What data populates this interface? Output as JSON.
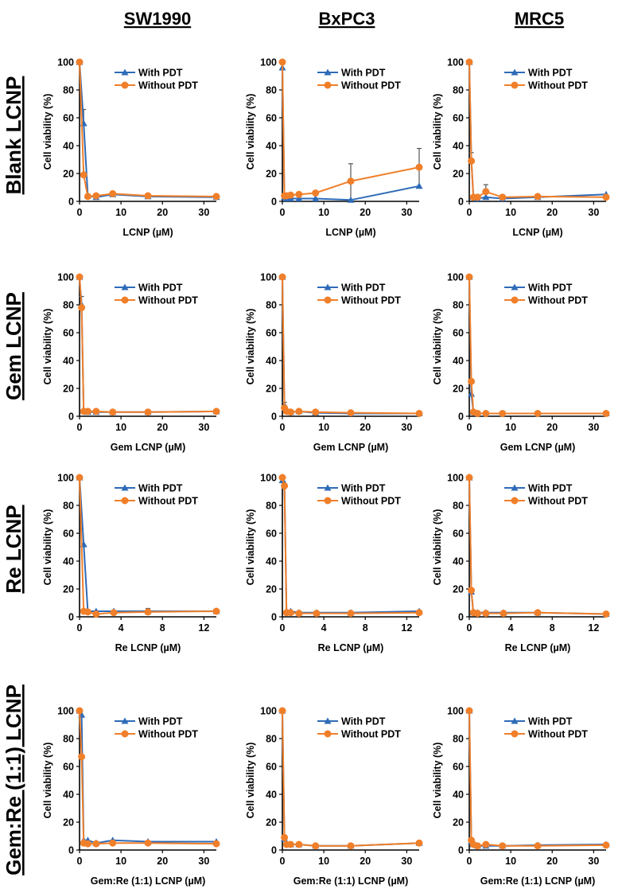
{
  "column_titles": [
    "SW1990",
    "BxPC3",
    "MRC5"
  ],
  "row_titles": [
    "Blank LCNP",
    "Gem LCNP",
    "Re LCNP",
    "Gem:Re (1:1) LCNP"
  ],
  "colors": {
    "with_pdt": "#2e6bb8",
    "without_pdt": "#f07f2a",
    "error_bar": "#555555",
    "axis": "#000000"
  },
  "chart_data": [
    {
      "type": "line",
      "row": "Blank LCNP",
      "cell_line": "SW1990",
      "xlabel": "LCNP (µM)",
      "ylabel": "Cell viability (%)",
      "xlim": [
        0,
        33
      ],
      "ylim": [
        0,
        100
      ],
      "xticks": [
        0,
        10,
        20,
        30
      ],
      "yticks": [
        0,
        20,
        40,
        60,
        80,
        100
      ],
      "legend": "top-right",
      "series": [
        {
          "name": "With PDT",
          "marker": "triangle",
          "x": [
            0,
            1,
            2,
            4,
            8,
            16.5,
            33
          ],
          "y": [
            100,
            56,
            4,
            3,
            5,
            3.5,
            3
          ],
          "err": [
            0,
            10,
            1,
            1,
            1,
            1,
            1
          ]
        },
        {
          "name": "Without PDT",
          "marker": "circle",
          "x": [
            0,
            1,
            2,
            4,
            8,
            16.5,
            33
          ],
          "y": [
            100,
            19,
            3.5,
            4,
            5.5,
            4,
            3.5
          ],
          "err": [
            0,
            0,
            0,
            0,
            0,
            0,
            0
          ]
        }
      ]
    },
    {
      "type": "line",
      "row": "Blank LCNP",
      "cell_line": "BxPC3",
      "xlabel": "LCNP (µM)",
      "ylabel": "Cell viability (%)",
      "xlim": [
        0,
        33
      ],
      "ylim": [
        0,
        100
      ],
      "xticks": [
        0,
        10,
        20,
        30
      ],
      "yticks": [
        0,
        20,
        40,
        60,
        80,
        100
      ],
      "legend": "top-right",
      "series": [
        {
          "name": "With PDT",
          "marker": "triangle",
          "x": [
            0,
            0.5,
            1,
            2,
            4,
            8,
            16.5,
            33
          ],
          "y": [
            96,
            3,
            2,
            2,
            2,
            2,
            1,
            11
          ],
          "err": [
            0,
            0,
            0,
            0,
            0,
            0,
            26,
            27
          ]
        },
        {
          "name": "Without PDT",
          "marker": "circle",
          "x": [
            0,
            0.5,
            1,
            2,
            4,
            8,
            16.5,
            33
          ],
          "y": [
            100,
            4,
            4,
            4.5,
            5,
            6,
            14.5,
            24.5
          ],
          "err": [
            0,
            0,
            0,
            0,
            0,
            0,
            0,
            0
          ]
        }
      ]
    },
    {
      "type": "line",
      "row": "Blank LCNP",
      "cell_line": "MRC5",
      "xlabel": "LCNP (µM)",
      "ylabel": "Cell viability (%)",
      "xlim": [
        0,
        33
      ],
      "ylim": [
        0,
        100
      ],
      "xticks": [
        0,
        10,
        20,
        30
      ],
      "yticks": [
        0,
        20,
        40,
        60,
        80,
        100
      ],
      "legend": "top-right",
      "series": [
        {
          "name": "With PDT",
          "marker": "triangle",
          "x": [
            0,
            0.5,
            1,
            2,
            4,
            8,
            16.5,
            33
          ],
          "y": [
            100,
            30,
            3,
            2,
            3,
            2,
            3,
            5
          ],
          "err": [
            0,
            5,
            0,
            0,
            0,
            0,
            0,
            0
          ]
        },
        {
          "name": "Without PDT",
          "marker": "circle",
          "x": [
            0,
            0.5,
            1,
            2,
            4,
            8,
            16.5,
            33
          ],
          "y": [
            100,
            29,
            3,
            3,
            7,
            3,
            3.5,
            3
          ],
          "err": [
            0,
            0,
            0,
            0,
            5,
            0,
            0,
            0
          ]
        }
      ]
    },
    {
      "type": "line",
      "row": "Gem LCNP",
      "cell_line": "SW1990",
      "xlabel": "Gem LCNP (µM)",
      "ylabel": "Cell viability (%)",
      "xlim": [
        0,
        33
      ],
      "ylim": [
        0,
        100
      ],
      "xticks": [
        0,
        10,
        20,
        30
      ],
      "yticks": [
        0,
        20,
        40,
        60,
        80,
        100
      ],
      "legend": "top-right",
      "series": [
        {
          "name": "With PDT",
          "marker": "triangle",
          "x": [
            0,
            0.5,
            1,
            2,
            4,
            8,
            16.5,
            33
          ],
          "y": [
            100,
            80,
            4,
            3,
            3,
            3,
            3,
            3.5
          ],
          "err": [
            0,
            6,
            0,
            0,
            0,
            0,
            0,
            0
          ]
        },
        {
          "name": "Without PDT",
          "marker": "circle",
          "x": [
            0,
            0.5,
            1,
            2,
            4,
            8,
            16.5,
            33
          ],
          "y": [
            100,
            78,
            3.5,
            3.5,
            3.5,
            3,
            3,
            3.5
          ],
          "err": [
            0,
            0,
            0,
            0,
            0,
            0,
            0,
            0
          ]
        }
      ]
    },
    {
      "type": "line",
      "row": "Gem LCNP",
      "cell_line": "BxPC3",
      "xlabel": "Gem LCNP (µM)",
      "ylabel": "Cell viability (%)",
      "xlim": [
        0,
        33
      ],
      "ylim": [
        0,
        100
      ],
      "xticks": [
        0,
        10,
        20,
        30
      ],
      "yticks": [
        0,
        20,
        40,
        60,
        80,
        100
      ],
      "legend": "top-right",
      "series": [
        {
          "name": "With PDT",
          "marker": "triangle",
          "x": [
            0,
            0.5,
            1,
            2,
            4,
            8,
            16.5,
            33
          ],
          "y": [
            100,
            8,
            4,
            3,
            3.5,
            2.5,
            2,
            2
          ],
          "err": [
            0,
            2,
            0,
            0,
            0,
            0,
            0,
            0
          ]
        },
        {
          "name": "Without PDT",
          "marker": "circle",
          "x": [
            0,
            0.5,
            1,
            2,
            4,
            8,
            16.5,
            33
          ],
          "y": [
            100,
            6,
            3.5,
            3,
            3.5,
            3,
            2.5,
            2
          ],
          "err": [
            0,
            0,
            0,
            0,
            0,
            0,
            0,
            0
          ]
        }
      ]
    },
    {
      "type": "line",
      "row": "Gem LCNP",
      "cell_line": "MRC5",
      "xlabel": "Gem LCNP (µM)",
      "ylabel": "Cell viability (%)",
      "xlim": [
        0,
        33
      ],
      "ylim": [
        0,
        100
      ],
      "xticks": [
        0,
        10,
        20,
        30
      ],
      "yticks": [
        0,
        20,
        40,
        60,
        80,
        100
      ],
      "legend": "top-right",
      "series": [
        {
          "name": "With PDT",
          "marker": "triangle",
          "x": [
            0,
            0.5,
            1,
            2,
            4,
            8,
            16.5,
            33
          ],
          "y": [
            100,
            16,
            3,
            2,
            2,
            2,
            2,
            2
          ],
          "err": [
            0,
            10,
            0,
            0,
            0,
            0,
            0,
            0
          ]
        },
        {
          "name": "Without PDT",
          "marker": "circle",
          "x": [
            0,
            0.5,
            1,
            2,
            4,
            8,
            16.5,
            33
          ],
          "y": [
            100,
            25,
            3,
            2,
            2,
            2,
            2,
            2
          ],
          "err": [
            0,
            0,
            0,
            0,
            0,
            0,
            0,
            0
          ]
        }
      ]
    },
    {
      "type": "line",
      "row": "Re LCNP",
      "cell_line": "SW1990",
      "xlabel": "Re LCNP (µM)",
      "ylabel": "Cell viability (%)",
      "xlim": [
        0,
        13.2
      ],
      "ylim": [
        0,
        100
      ],
      "xticks": [
        0,
        4,
        8,
        12
      ],
      "yticks": [
        0,
        20,
        40,
        60,
        80,
        100
      ],
      "legend": "top-right",
      "series": [
        {
          "name": "With PDT",
          "marker": "triangle",
          "x": [
            0,
            0.4,
            0.8,
            1.6,
            3.3,
            6.6,
            13.2
          ],
          "y": [
            100,
            52,
            4,
            4,
            4,
            4,
            4
          ],
          "err": [
            0,
            0,
            0,
            0,
            0,
            2,
            0
          ]
        },
        {
          "name": "Without PDT",
          "marker": "circle",
          "x": [
            0,
            0.4,
            0.8,
            1.6,
            3.3,
            6.6,
            13.2
          ],
          "y": [
            100,
            4,
            3.5,
            2,
            3,
            3.5,
            4
          ],
          "err": [
            0,
            0,
            0,
            0,
            0,
            0,
            0
          ]
        }
      ]
    },
    {
      "type": "line",
      "row": "Re LCNP",
      "cell_line": "BxPC3",
      "xlabel": "Re LCNP (µM)",
      "ylabel": "Cell viability (%)",
      "xlim": [
        0,
        13.2
      ],
      "ylim": [
        0,
        100
      ],
      "xticks": [
        0,
        4,
        8,
        12
      ],
      "yticks": [
        0,
        20,
        40,
        60,
        80,
        100
      ],
      "legend": "top-right",
      "series": [
        {
          "name": "With PDT",
          "marker": "triangle",
          "x": [
            0,
            0.2,
            0.4,
            0.8,
            1.6,
            3.3,
            6.6,
            13.2
          ],
          "y": [
            98,
            96,
            4,
            4,
            3,
            3,
            3,
            4
          ],
          "err": [
            0,
            0,
            0,
            0,
            0,
            0,
            0,
            0
          ]
        },
        {
          "name": "Without PDT",
          "marker": "circle",
          "x": [
            0,
            0.2,
            0.4,
            0.8,
            1.6,
            3.3,
            6.6,
            13.2
          ],
          "y": [
            100,
            94,
            3,
            3,
            2.5,
            2.5,
            2.5,
            3
          ],
          "err": [
            0,
            0,
            0,
            0,
            0,
            0,
            0,
            0
          ]
        }
      ]
    },
    {
      "type": "line",
      "row": "Re LCNP",
      "cell_line": "MRC5",
      "xlabel": "Re LCNP (µM)",
      "ylabel": "Cell viability (%)",
      "xlim": [
        0,
        13.2
      ],
      "ylim": [
        0,
        100
      ],
      "xticks": [
        0,
        4,
        8,
        12
      ],
      "yticks": [
        0,
        20,
        40,
        60,
        80,
        100
      ],
      "legend": "top-right",
      "series": [
        {
          "name": "With PDT",
          "marker": "triangle",
          "x": [
            0,
            0.2,
            0.4,
            0.8,
            1.6,
            3.3,
            6.6,
            13.2
          ],
          "y": [
            100,
            18,
            3,
            3,
            3,
            3,
            3,
            2
          ],
          "err": [
            0,
            0,
            0,
            0,
            0,
            0,
            0,
            0
          ]
        },
        {
          "name": "Without PDT",
          "marker": "circle",
          "x": [
            0,
            0.2,
            0.4,
            0.8,
            1.6,
            3.3,
            6.6,
            13.2
          ],
          "y": [
            100,
            19,
            3,
            2.5,
            2.5,
            2.5,
            3,
            2
          ],
          "err": [
            0,
            0,
            0,
            0,
            0,
            0,
            0,
            0
          ]
        }
      ]
    },
    {
      "type": "line",
      "row": "Gem:Re (1:1) LCNP",
      "cell_line": "SW1990",
      "xlabel": "Gem:Re (1:1) LCNP (µM)",
      "ylabel": "Cell viability (%)",
      "xlim": [
        0,
        33
      ],
      "ylim": [
        0,
        100
      ],
      "xticks": [
        0,
        10,
        20,
        30
      ],
      "yticks": [
        0,
        20,
        40,
        60,
        80,
        100
      ],
      "legend": "top-right",
      "series": [
        {
          "name": "With PDT",
          "marker": "triangle",
          "x": [
            0,
            0.5,
            1,
            2,
            4,
            8,
            16.5,
            33
          ],
          "y": [
            100,
            97,
            7,
            7,
            5,
            7,
            6,
            6
          ],
          "err": [
            0,
            0,
            0,
            0,
            0,
            0,
            0,
            0
          ]
        },
        {
          "name": "Without PDT",
          "marker": "circle",
          "x": [
            0,
            0.5,
            1,
            2,
            4,
            8,
            16.5,
            33
          ],
          "y": [
            100,
            67,
            5,
            4.5,
            4.5,
            5,
            5,
            4.5
          ],
          "err": [
            0,
            0,
            0,
            0,
            0,
            0,
            0,
            0
          ]
        }
      ]
    },
    {
      "type": "line",
      "row": "Gem:Re (1:1) LCNP",
      "cell_line": "BxPC3",
      "xlabel": "Gem:Re (1:1) LCNP (µM)",
      "ylabel": "Cell viability (%)",
      "xlim": [
        0,
        33
      ],
      "ylim": [
        0,
        100
      ],
      "xticks": [
        0,
        10,
        20,
        30
      ],
      "yticks": [
        0,
        20,
        40,
        60,
        80,
        100
      ],
      "legend": "top-right",
      "series": [
        {
          "name": "With PDT",
          "marker": "triangle",
          "x": [
            0,
            0.5,
            1,
            2,
            4,
            8,
            16.5,
            33
          ],
          "y": [
            100,
            8,
            5,
            4,
            4,
            3,
            3,
            5
          ],
          "err": [
            0,
            0,
            0,
            0,
            0,
            0,
            0,
            0
          ]
        },
        {
          "name": "Without PDT",
          "marker": "circle",
          "x": [
            0,
            0.5,
            1,
            2,
            4,
            8,
            16.5,
            33
          ],
          "y": [
            100,
            9,
            4,
            4,
            4,
            3,
            3,
            5
          ],
          "err": [
            0,
            0,
            0,
            0,
            0,
            0,
            0,
            0
          ]
        }
      ]
    },
    {
      "type": "line",
      "row": "Gem:Re (1:1) LCNP",
      "cell_line": "MRC5",
      "xlabel": "Gem:Re (1:1) LCNP (µM)",
      "ylabel": "Cell viability (%)",
      "xlim": [
        0,
        33
      ],
      "ylim": [
        0,
        100
      ],
      "xticks": [
        0,
        10,
        20,
        30
      ],
      "yticks": [
        0,
        20,
        40,
        60,
        80,
        100
      ],
      "legend": "top-right",
      "series": [
        {
          "name": "With PDT",
          "marker": "triangle",
          "x": [
            0,
            0.5,
            1,
            2,
            4,
            8,
            16.5,
            33
          ],
          "y": [
            100,
            6,
            4,
            3,
            3,
            3,
            3.5,
            4
          ],
          "err": [
            0,
            0,
            0,
            0,
            0,
            0,
            0,
            0
          ]
        },
        {
          "name": "Without PDT",
          "marker": "circle",
          "x": [
            0,
            0.5,
            1,
            2,
            4,
            8,
            16.5,
            33
          ],
          "y": [
            100,
            7,
            4,
            3,
            4,
            3,
            3,
            3.5
          ],
          "err": [
            0,
            0,
            0,
            0,
            0,
            0,
            0,
            0
          ]
        }
      ]
    }
  ]
}
